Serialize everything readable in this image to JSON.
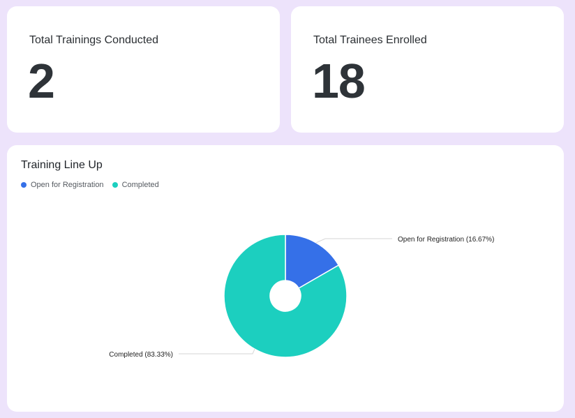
{
  "stats": {
    "trainings": {
      "label": "Total Trainings Conducted",
      "value": "2"
    },
    "trainees": {
      "label": "Total Trainees Enrolled",
      "value": "18"
    }
  },
  "chart_data": {
    "type": "pie",
    "title": "Training Line Up",
    "legend_position": "top-left",
    "hole": "small",
    "categories": [
      "Open for Registration",
      "Completed"
    ],
    "values": [
      16.67,
      83.33
    ],
    "colors": [
      "#3570e8",
      "#1ccfbf"
    ],
    "data_labels": [
      "Open for Registration (16.67%)",
      "Completed (83.33%)"
    ]
  }
}
